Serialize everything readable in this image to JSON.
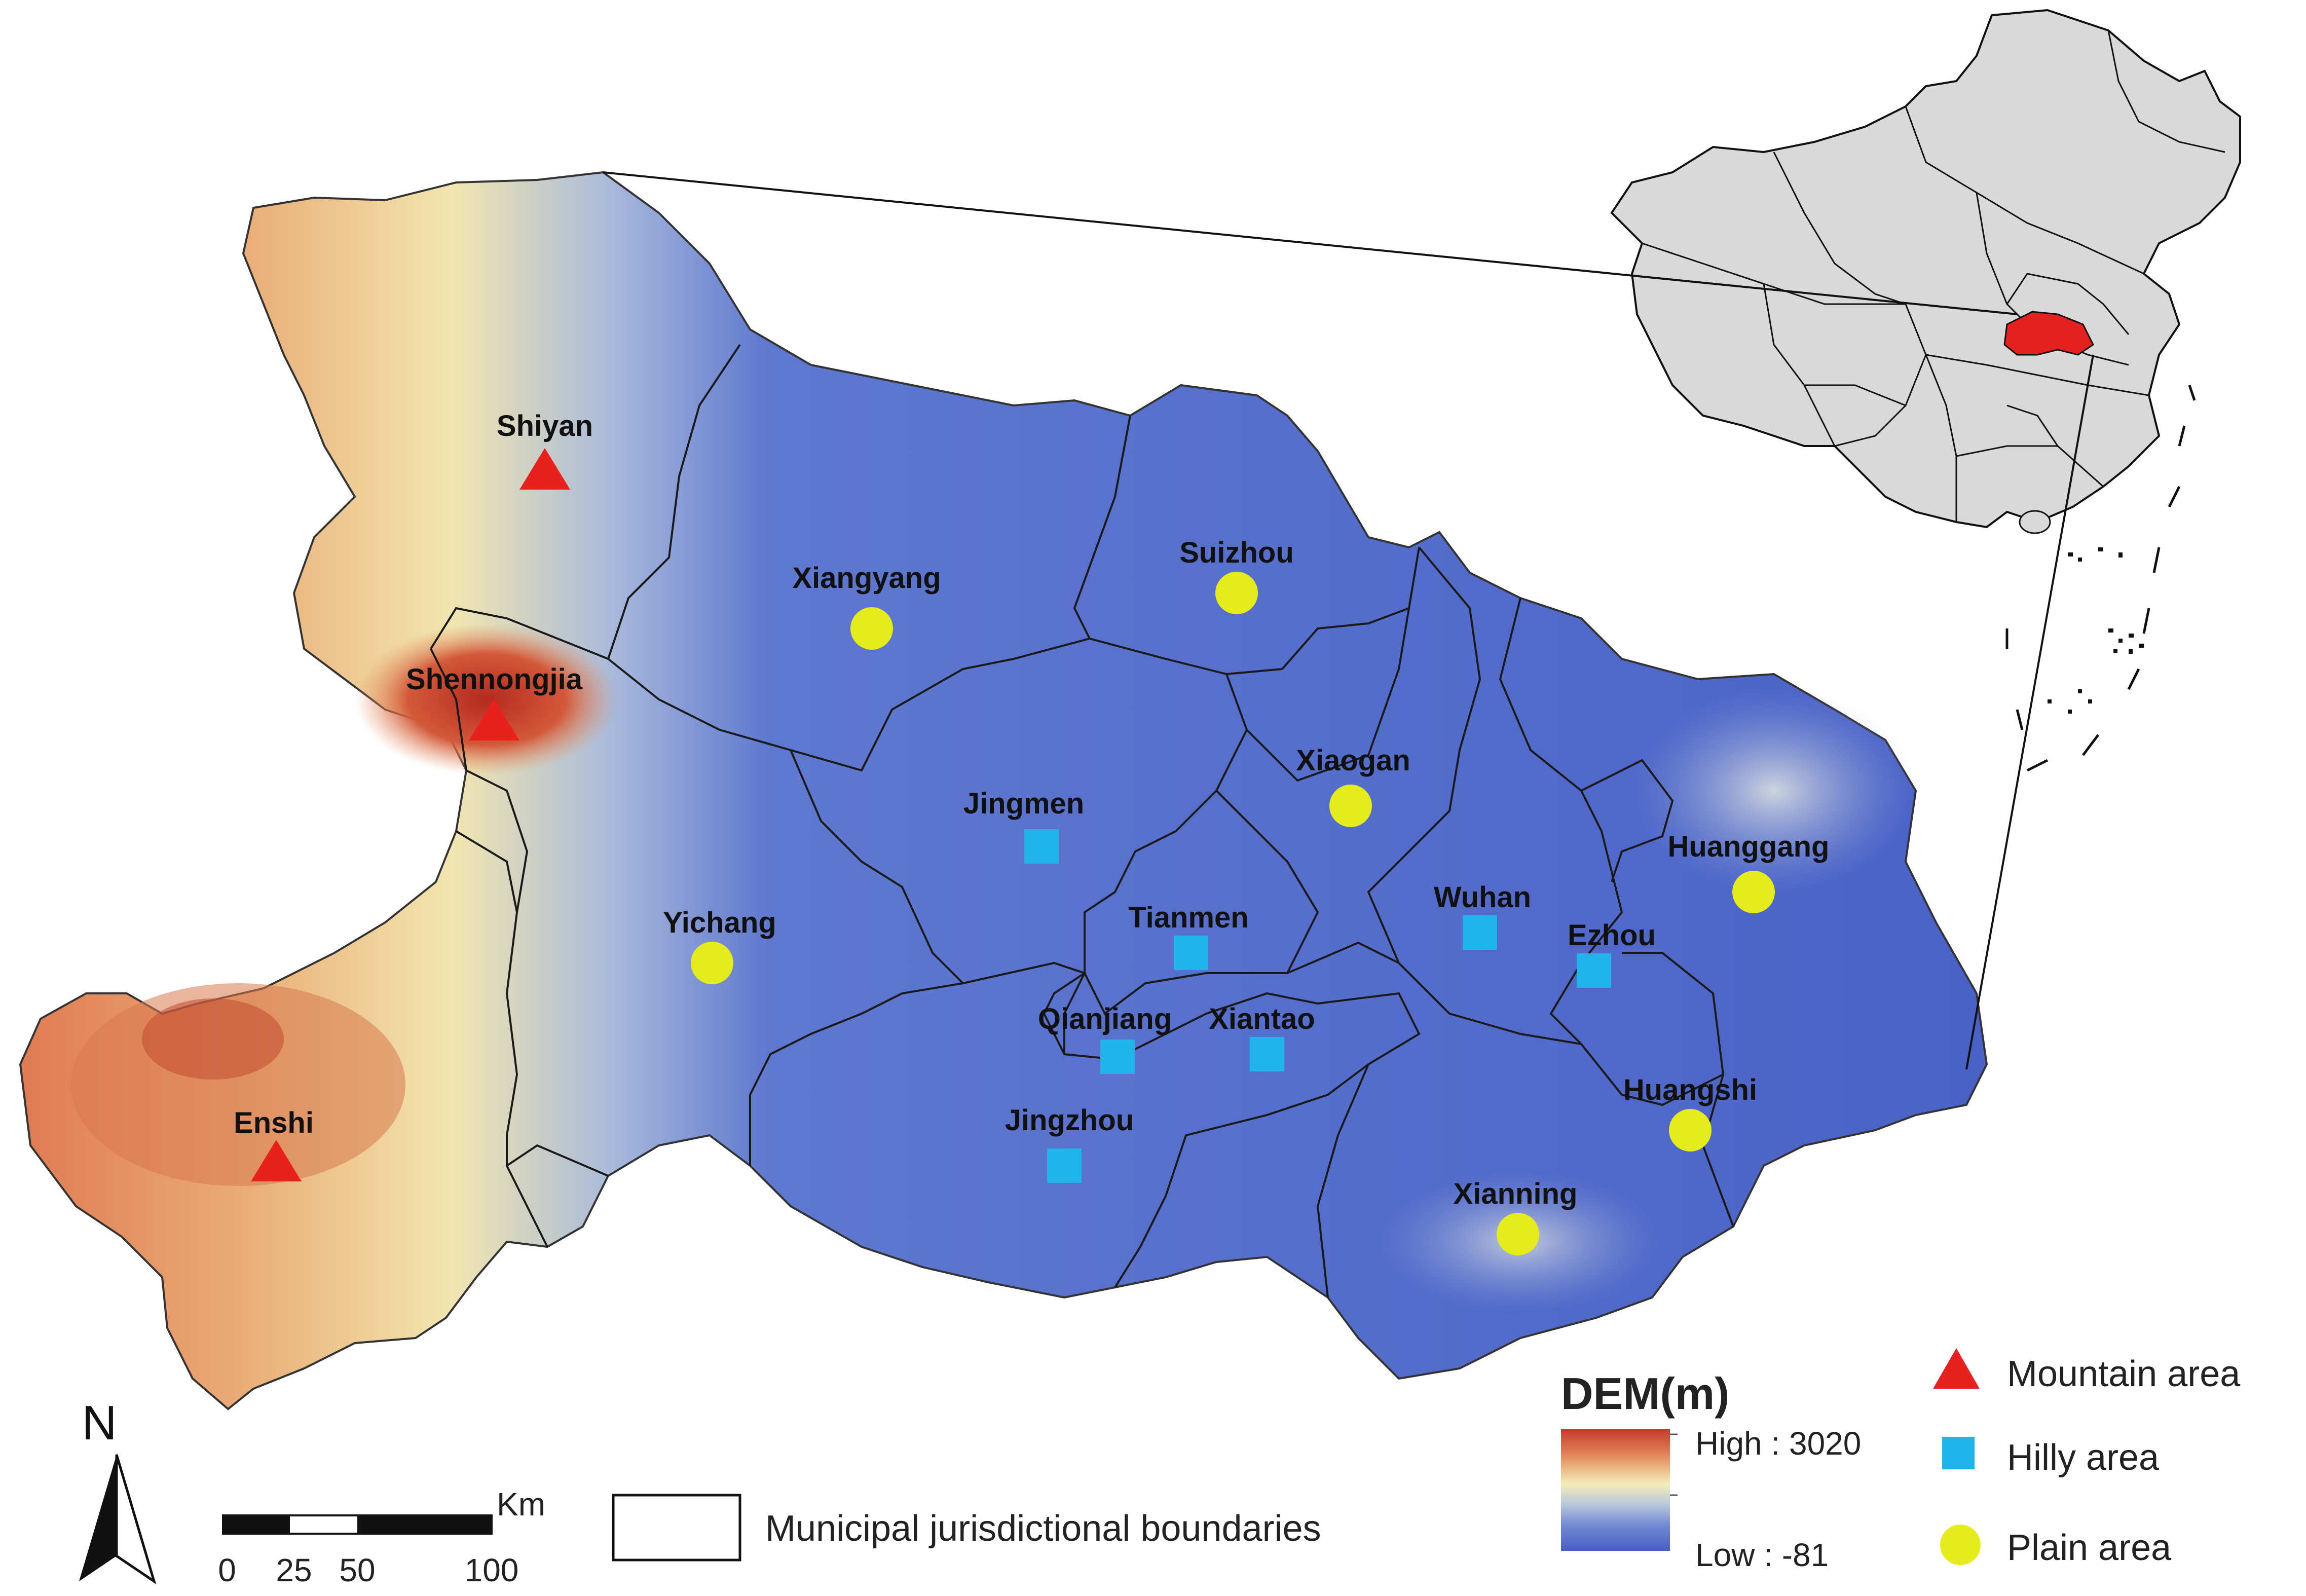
{
  "map": {
    "cities": [
      {
        "name": "Shiyan",
        "type": "mountain"
      },
      {
        "name": "Shennongjia",
        "type": "mountain"
      },
      {
        "name": "Enshi",
        "type": "mountain"
      },
      {
        "name": "Xiangyang",
        "type": "plain"
      },
      {
        "name": "Suizhou",
        "type": "plain"
      },
      {
        "name": "Xiaogan",
        "type": "plain"
      },
      {
        "name": "Yichang",
        "type": "plain"
      },
      {
        "name": "Huanggang",
        "type": "plain"
      },
      {
        "name": "Huangshi",
        "type": "plain"
      },
      {
        "name": "Xianning",
        "type": "plain"
      },
      {
        "name": "Jingmen",
        "type": "hilly"
      },
      {
        "name": "Tianmen",
        "type": "hilly"
      },
      {
        "name": "Wuhan",
        "type": "hilly"
      },
      {
        "name": "Ezhou",
        "type": "hilly"
      },
      {
        "name": "Qianjiang",
        "type": "hilly"
      },
      {
        "name": "Xiantao",
        "type": "hilly"
      },
      {
        "name": "Jingzhou",
        "type": "hilly"
      }
    ]
  },
  "legend": {
    "dem_title": "DEM(m)",
    "dem_high": "High : 3020",
    "dem_low": "Low : -81",
    "mountain_label": "Mountain area",
    "hilly_label": "Hilly area",
    "plain_label": "Plain area",
    "boundary_label": "Municipal jurisdictional boundaries"
  },
  "scale_bar": {
    "unit": "Km",
    "ticks": [
      "0",
      "25",
      "50",
      "100"
    ]
  },
  "north_arrow": {
    "label": "N"
  },
  "colors": {
    "mountain": "#e8201e",
    "hilly": "#21b4ea",
    "plain": "#e6ec1c",
    "low_elevation": "#4a64c6",
    "high_elevation": "#c9432e",
    "highlight_region": "#e42020",
    "china_fill": "#d9d9d9"
  }
}
